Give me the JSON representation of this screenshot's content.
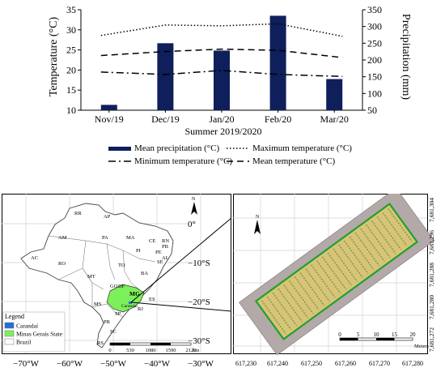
{
  "chart_data": {
    "type": "bar",
    "categories": [
      "Nov/19",
      "Dec/19",
      "Jan/20",
      "Feb/20",
      "Mar/20"
    ],
    "xlabel": "Summer 2019/2020",
    "ylabel_left": "Temperature (°C)",
    "ylabel_right": "Precipitation (mm)",
    "y_left_lim": [
      10,
      35
    ],
    "y_left_ticks": [
      "10",
      "15",
      "20",
      "25",
      "30",
      "35"
    ],
    "y_right_lim": [
      50,
      350
    ],
    "y_right_ticks": [
      "50",
      "100",
      "150",
      "200",
      "250",
      "300",
      "350"
    ],
    "series": [
      {
        "name": "Mean precipitation (°C)",
        "kind": "bar",
        "axis": "right",
        "color": "#0e1f5c",
        "values": [
          66,
          250,
          228,
          332,
          143
        ]
      },
      {
        "name": "Maximum temperature (°C)",
        "kind": "line",
        "axis": "left",
        "style": "dotted",
        "values": [
          28.6,
          31.2,
          31.0,
          31.5,
          28.4
        ]
      },
      {
        "name": "Minimum temperature (°C)",
        "kind": "line",
        "axis": "left",
        "style": "dashdot",
        "values": [
          19.5,
          18.9,
          19.9,
          18.9,
          18.4
        ]
      },
      {
        "name": "Mean temperature (°C)",
        "kind": "line",
        "axis": "left",
        "style": "dashed",
        "values": [
          23.6,
          24.6,
          25.2,
          24.9,
          23.1
        ]
      }
    ],
    "legend": {
      "labels": [
        "Mean precipitation (°C)",
        "Maximum temperature (°C)",
        "Minimum temperature (°C)",
        "Mean temperature (°C)"
      ]
    }
  },
  "map_left": {
    "lat_labels": [
      "0°",
      "−10°S",
      "−20°S",
      "−30°S"
    ],
    "lon_labels": [
      "−70°W",
      "−60°W",
      "−50°W",
      "−40°W",
      "−30°W"
    ],
    "states": [
      "RR",
      "AP",
      "AM",
      "PA",
      "MA",
      "CE",
      "RN",
      "PB",
      "PI",
      "PE",
      "AL",
      "SE",
      "AC",
      "RO",
      "TO",
      "BA",
      "MT",
      "GO",
      "DF",
      "MG",
      "ES",
      "MS",
      "SP",
      "RJ",
      "PR",
      "SC",
      "RS"
    ],
    "mg_sublabel": "Carandaí",
    "north": "N",
    "scale_ticks": [
      "0",
      "530",
      "1080",
      "1590",
      "2120"
    ],
    "scale_unit": "km",
    "legend_title": "Legend",
    "legend_items": [
      {
        "label": "Carandaí",
        "color": "#1f6fe0"
      },
      {
        "label": "Minas Gerais State",
        "color": "#7cf05a"
      },
      {
        "label": "Brazil",
        "color": "#ffffff"
      }
    ]
  },
  "map_right": {
    "north": "N",
    "x_labels": [
      "617,230",
      "617,240",
      "617,250",
      "617,260",
      "617,270",
      "617,280"
    ],
    "y_labels": [
      "7,681,272",
      "7,681,280",
      "7,681,288",
      "7,681,296",
      "7,681,304"
    ],
    "scale_ticks": [
      "0",
      "5",
      "10",
      "15",
      "20"
    ],
    "scale_unit": "Meters"
  }
}
